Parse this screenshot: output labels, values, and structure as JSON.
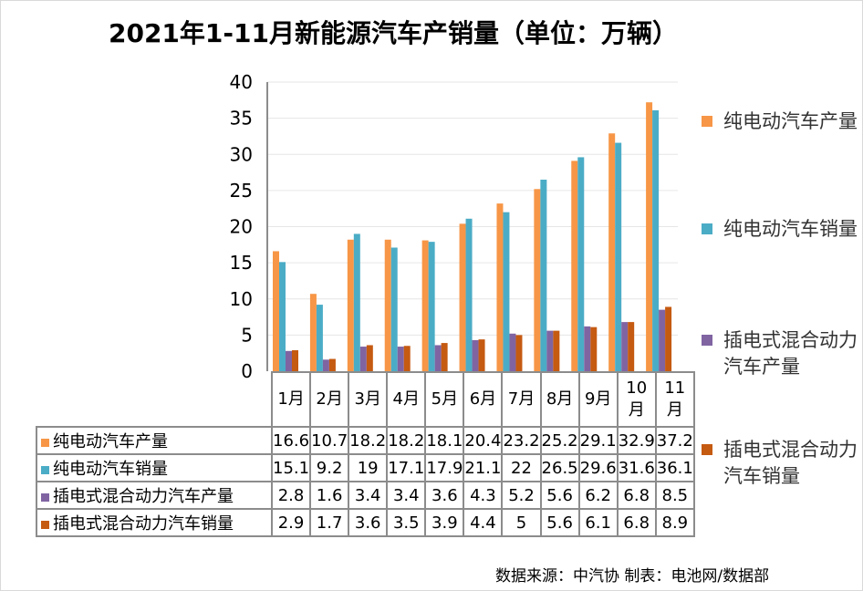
{
  "chart_data": {
    "type": "bar",
    "title": "2021年1-11月新能源汽车产销量（单位：万辆）",
    "categories": [
      "1月",
      "2月",
      "3月",
      "4月",
      "5月",
      "6月",
      "7月",
      "8月",
      "9月",
      "10月",
      "11月"
    ],
    "series": [
      {
        "name": "纯电动汽车产量",
        "color": "#F79646",
        "values": [
          16.6,
          10.7,
          18.2,
          18.2,
          18.1,
          20.4,
          23.2,
          25.2,
          29.1,
          32.9,
          37.2
        ]
      },
      {
        "name": "纯电动汽车销量",
        "color": "#4BACC6",
        "values": [
          15.1,
          9.2,
          19,
          17.1,
          17.9,
          21.1,
          22,
          26.5,
          29.6,
          31.6,
          36.1
        ]
      },
      {
        "name": "插电式混合动力汽车产量",
        "color": "#8064A2",
        "values": [
          2.8,
          1.6,
          3.4,
          3.4,
          3.6,
          4.3,
          5.2,
          5.6,
          6.2,
          6.8,
          8.5
        ]
      },
      {
        "name": "插电式混合动力汽车销量",
        "color": "#C55A11",
        "values": [
          2.9,
          1.7,
          3.6,
          3.5,
          3.9,
          4.4,
          5,
          5.6,
          6.1,
          6.8,
          8.9
        ]
      }
    ],
    "ylim": [
      0,
      40
    ],
    "yticks": [
      0,
      5,
      10,
      15,
      20,
      25,
      30,
      35,
      40
    ],
    "grid": true,
    "legend": "right",
    "data_table": true
  },
  "source": "数据来源：中汽协  制表：电池网/数据部"
}
